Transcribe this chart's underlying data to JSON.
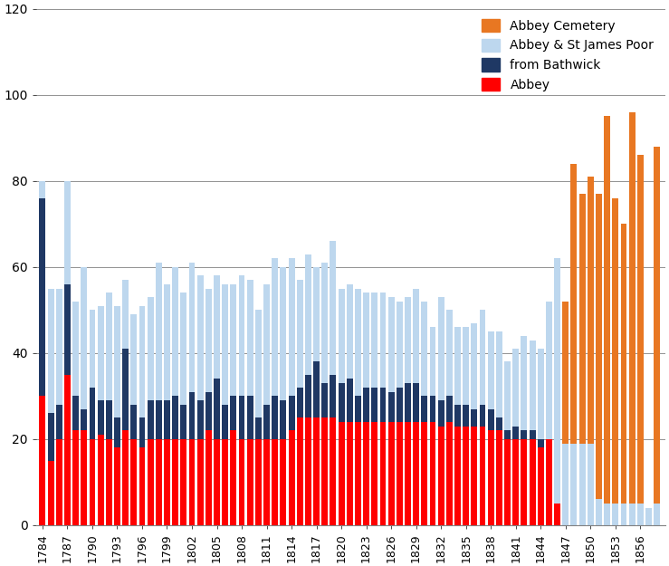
{
  "years": [
    1784,
    1785,
    1786,
    1787,
    1788,
    1789,
    1790,
    1791,
    1792,
    1793,
    1794,
    1795,
    1796,
    1797,
    1798,
    1799,
    1800,
    1801,
    1802,
    1803,
    1804,
    1805,
    1806,
    1807,
    1808,
    1809,
    1810,
    1811,
    1812,
    1813,
    1814,
    1815,
    1816,
    1817,
    1818,
    1819,
    1820,
    1821,
    1822,
    1823,
    1824,
    1825,
    1826,
    1827,
    1828,
    1829,
    1830,
    1831,
    1832,
    1833,
    1834,
    1835,
    1836,
    1837,
    1838,
    1839,
    1840,
    1841,
    1842,
    1843,
    1844,
    1845,
    1846,
    1847,
    1848,
    1849,
    1850,
    1851,
    1852,
    1853,
    1854,
    1855,
    1856,
    1857,
    1858
  ],
  "abbey": [
    30,
    15,
    20,
    35,
    22,
    22,
    20,
    21,
    20,
    18,
    22,
    20,
    18,
    20,
    20,
    20,
    20,
    20,
    20,
    20,
    22,
    20,
    20,
    22,
    20,
    20,
    20,
    20,
    20,
    20,
    22,
    25,
    25,
    25,
    25,
    25,
    24,
    24,
    24,
    24,
    24,
    24,
    24,
    24,
    24,
    24,
    24,
    24,
    23,
    24,
    23,
    23,
    23,
    23,
    22,
    22,
    20,
    20,
    20,
    20,
    18,
    20,
    5,
    0,
    0,
    0,
    0,
    0,
    0,
    0,
    0,
    0,
    0,
    0,
    0
  ],
  "bathwick": [
    46,
    11,
    8,
    21,
    8,
    5,
    12,
    8,
    9,
    7,
    19,
    8,
    7,
    9,
    9,
    9,
    10,
    8,
    11,
    9,
    9,
    14,
    8,
    8,
    10,
    10,
    5,
    8,
    10,
    9,
    8,
    7,
    10,
    13,
    8,
    10,
    9,
    10,
    6,
    8,
    8,
    8,
    7,
    8,
    9,
    9,
    6,
    6,
    6,
    6,
    5,
    5,
    4,
    5,
    5,
    3,
    2,
    3,
    2,
    2,
    2,
    0,
    0,
    0,
    0,
    0,
    0,
    0,
    0,
    0,
    0,
    0,
    0,
    0,
    0
  ],
  "st_james": [
    4,
    29,
    27,
    24,
    22,
    33,
    18,
    22,
    25,
    26,
    16,
    21,
    26,
    24,
    32,
    27,
    30,
    26,
    30,
    29,
    24,
    24,
    28,
    26,
    28,
    27,
    25,
    28,
    32,
    31,
    32,
    25,
    28,
    22,
    28,
    31,
    22,
    22,
    25,
    22,
    22,
    22,
    22,
    20,
    20,
    22,
    22,
    16,
    24,
    20,
    18,
    18,
    20,
    22,
    18,
    20,
    16,
    18,
    22,
    21,
    21,
    32,
    57,
    19,
    19,
    19,
    19,
    6,
    5,
    5,
    5,
    5,
    5,
    4,
    5
  ],
  "abbey_cemetery": [
    0,
    0,
    0,
    0,
    0,
    0,
    0,
    0,
    0,
    0,
    0,
    0,
    0,
    0,
    0,
    0,
    0,
    0,
    0,
    0,
    0,
    0,
    0,
    0,
    0,
    0,
    0,
    0,
    0,
    0,
    0,
    0,
    0,
    0,
    0,
    0,
    0,
    0,
    0,
    0,
    0,
    0,
    0,
    0,
    0,
    0,
    0,
    0,
    0,
    0,
    0,
    0,
    0,
    0,
    0,
    0,
    0,
    0,
    0,
    0,
    0,
    0,
    0,
    33,
    65,
    58,
    62,
    71,
    90,
    71,
    65,
    91,
    81,
    0,
    83
  ],
  "colors": {
    "abbey": "#FF0000",
    "bathwick": "#1F3864",
    "st_james": "#BDD7EE",
    "abbey_cemetery": "#E87722"
  },
  "ylim": [
    0,
    120
  ],
  "yticks": [
    0,
    20,
    40,
    60,
    80,
    100,
    120
  ],
  "xtick_years": [
    1784,
    1787,
    1790,
    1793,
    1796,
    1799,
    1802,
    1805,
    1808,
    1811,
    1814,
    1817,
    1820,
    1823,
    1826,
    1829,
    1832,
    1835,
    1838,
    1841,
    1844,
    1847,
    1850,
    1853,
    1856
  ],
  "legend": {
    "Abbey Cemetery": "#E87722",
    "Abbey & St James Poor": "#BDD7EE",
    "from Bathwick": "#1F3864",
    "Abbey": "#FF0000"
  }
}
